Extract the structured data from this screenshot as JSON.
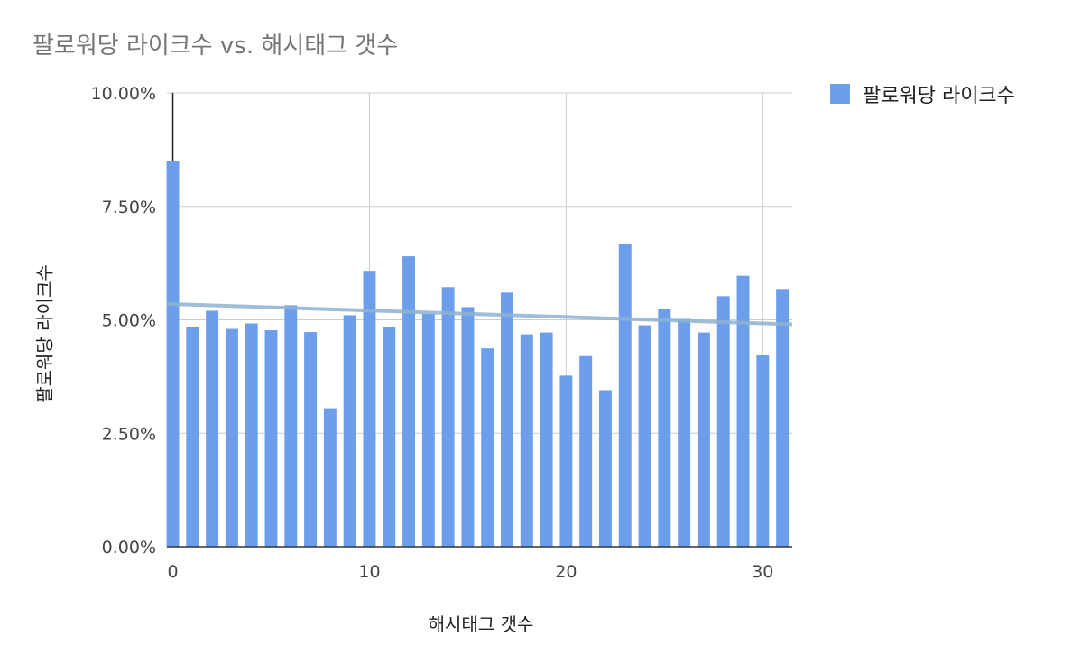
{
  "chart_data": {
    "type": "bar",
    "title": "팔로워당 라이크수 vs. 해시태그 갯수",
    "xlabel": "해시태그 갯수",
    "ylabel": "팔로워당 라이크수",
    "legend_position": "top-right",
    "grid": true,
    "xlim": [
      -0.3,
      31.5
    ],
    "ylim": [
      0,
      10
    ],
    "x_ticks": [
      "0",
      "10",
      "20",
      "30"
    ],
    "y_ticks": [
      "0.00%",
      "2.50%",
      "5.00%",
      "7.50%",
      "10.00%"
    ],
    "x": [
      0,
      1,
      2,
      3,
      4,
      5,
      6,
      7,
      8,
      9,
      10,
      11,
      12,
      13,
      14,
      15,
      16,
      17,
      18,
      19,
      20,
      21,
      22,
      23,
      24,
      25,
      26,
      27,
      28,
      29,
      30,
      31
    ],
    "series": [
      {
        "name": "팔로워당 라이크수",
        "color": "#6d9eeb",
        "values": [
          8.5,
          4.85,
          5.2,
          4.8,
          4.92,
          4.77,
          5.32,
          4.73,
          3.05,
          5.1,
          6.08,
          4.85,
          6.4,
          5.13,
          5.72,
          5.28,
          4.37,
          5.6,
          4.68,
          4.72,
          3.77,
          4.2,
          3.45,
          6.68,
          4.88,
          5.23,
          5.02,
          4.72,
          5.52,
          5.97,
          4.23,
          5.68
        ]
      }
    ],
    "trendline": {
      "color": "#8eb1d1",
      "x": [
        -0.3,
        31.5
      ],
      "y": [
        5.35,
        4.9
      ]
    },
    "error_bar": {
      "x": 0,
      "low": 8.5,
      "high": 10.0
    }
  }
}
